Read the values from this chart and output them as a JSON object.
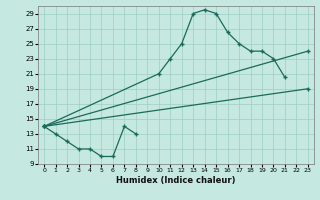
{
  "xlabel": "Humidex (Indice chaleur)",
  "bg_color": "#c5e8e0",
  "grid_color": "#9ecec6",
  "line_color": "#1a6b5a",
  "xlim": [
    -0.5,
    23.5
  ],
  "ylim": [
    9,
    30
  ],
  "xticks": [
    0,
    1,
    2,
    3,
    4,
    5,
    6,
    7,
    8,
    9,
    10,
    11,
    12,
    13,
    14,
    15,
    16,
    17,
    18,
    19,
    20,
    21,
    22,
    23
  ],
  "yticks": [
    9,
    11,
    13,
    15,
    17,
    19,
    21,
    23,
    25,
    27,
    29
  ],
  "line1_x": [
    0,
    1,
    2,
    3,
    4,
    5,
    6,
    7,
    8
  ],
  "line1_y": [
    14,
    13,
    12,
    11,
    11,
    10,
    10,
    14,
    13
  ],
  "line2_x": [
    0,
    10,
    11,
    12,
    13,
    14,
    15,
    16,
    17,
    18,
    19,
    20,
    21
  ],
  "line2_y": [
    14,
    21,
    23,
    25,
    29,
    29.5,
    29,
    26.5,
    25,
    24,
    24,
    23,
    20.5
  ],
  "line3_x": [
    0,
    23
  ],
  "line3_y": [
    14,
    24
  ],
  "line4_x": [
    0,
    23
  ],
  "line4_y": [
    14,
    19
  ]
}
